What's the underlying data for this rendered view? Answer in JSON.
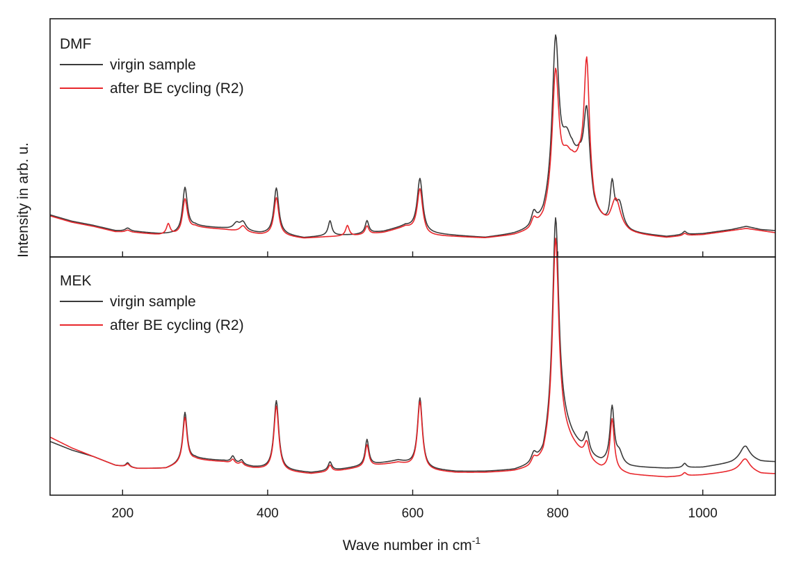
{
  "chart_data": {
    "type": "line",
    "xlabel": "Wave number in cm",
    "xlabel_sup": "-1",
    "ylabel": "Intensity in arb. u.",
    "xlim": [
      100,
      1100
    ],
    "x_ticks": [
      200,
      400,
      600,
      800,
      1000
    ],
    "x_tick_labels": [
      "200",
      "400",
      "600",
      "800",
      "1000"
    ],
    "grid": false,
    "colors": {
      "virgin": "#3a3a3a",
      "cycled": "#e8262b"
    },
    "panels": [
      {
        "name": "DMF",
        "label": "DMF",
        "legend_position": "top-left",
        "ylim": [
          0,
          1
        ],
        "series": [
          {
            "name": "virgin sample",
            "color": "#3a3a3a",
            "baseline": [
              [
                100,
                0.14
              ],
              [
                130,
                0.11
              ],
              [
                160,
                0.09
              ],
              [
                190,
                0.065
              ],
              [
                220,
                0.06
              ],
              [
                250,
                0.05
              ],
              [
                280,
                0.05
              ],
              [
                300,
                0.085
              ],
              [
                340,
                0.075
              ],
              [
                390,
                0.05
              ],
              [
                420,
                0.045
              ],
              [
                450,
                0.03
              ],
              [
                480,
                0.04
              ],
              [
                520,
                0.045
              ],
              [
                560,
                0.06
              ],
              [
                590,
                0.085
              ],
              [
                620,
                0.05
              ],
              [
                660,
                0.04
              ],
              [
                700,
                0.03
              ],
              [
                740,
                0.045
              ],
              [
                760,
                0.06
              ],
              [
                780,
                0.1
              ],
              [
                800,
                0.22
              ],
              [
                820,
                0.36
              ],
              [
                830,
                0.36
              ],
              [
                850,
                0.14
              ],
              [
                870,
                0.07
              ],
              [
                900,
                0.05
              ],
              [
                950,
                0.035
              ],
              [
                975,
                0.045
              ],
              [
                1000,
                0.05
              ],
              [
                1040,
                0.07
              ],
              [
                1060,
                0.085
              ],
              [
                1080,
                0.07
              ],
              [
                1100,
                0.065
              ]
            ],
            "peaks": [
              [
                207,
                0.015,
                4
              ],
              [
                286,
                0.21,
                4
              ],
              [
                357,
                0.03,
                5
              ],
              [
                366,
                0.04,
                5
              ],
              [
                412,
                0.22,
                4
              ],
              [
                486,
                0.07,
                3
              ],
              [
                537,
                0.06,
                3
              ],
              [
                610,
                0.25,
                4.5
              ],
              [
                767,
                0.06,
                4
              ],
              [
                797,
                0.75,
                5.5
              ],
              [
                812,
                0.15,
                8
              ],
              [
                840,
                0.38,
                5
              ],
              [
                875,
                0.2,
                3.5
              ],
              [
                885,
                0.12,
                6
              ],
              [
                975,
                0.015,
                3
              ]
            ]
          },
          {
            "name": "after BE cycling (R2)",
            "color": "#e8262b",
            "baseline": [
              [
                100,
                0.135
              ],
              [
                130,
                0.105
              ],
              [
                160,
                0.085
              ],
              [
                190,
                0.06
              ],
              [
                220,
                0.055
              ],
              [
                250,
                0.045
              ],
              [
                280,
                0.045
              ],
              [
                300,
                0.08
              ],
              [
                340,
                0.07
              ],
              [
                390,
                0.045
              ],
              [
                420,
                0.04
              ],
              [
                450,
                0.028
              ],
              [
                480,
                0.035
              ],
              [
                520,
                0.04
              ],
              [
                560,
                0.055
              ],
              [
                590,
                0.08
              ],
              [
                620,
                0.04
              ],
              [
                660,
                0.035
              ],
              [
                700,
                0.028
              ],
              [
                740,
                0.04
              ],
              [
                760,
                0.055
              ],
              [
                780,
                0.09
              ],
              [
                800,
                0.2
              ],
              [
                820,
                0.33
              ],
              [
                830,
                0.34
              ],
              [
                850,
                0.13
              ],
              [
                870,
                0.065
              ],
              [
                900,
                0.045
              ],
              [
                950,
                0.03
              ],
              [
                975,
                0.04
              ],
              [
                1000,
                0.045
              ],
              [
                1040,
                0.065
              ],
              [
                1060,
                0.075
              ],
              [
                1080,
                0.065
              ],
              [
                1100,
                0.055
              ]
            ],
            "peaks": [
              [
                207,
                0.01,
                4
              ],
              [
                263,
                0.05,
                3
              ],
              [
                286,
                0.16,
                4
              ],
              [
                366,
                0.03,
                5
              ],
              [
                412,
                0.18,
                4
              ],
              [
                510,
                0.05,
                3
              ],
              [
                537,
                0.04,
                3
              ],
              [
                610,
                0.21,
                4.5
              ],
              [
                767,
                0.04,
                4
              ],
              [
                797,
                0.62,
                5.5
              ],
              [
                812,
                0.1,
                8
              ],
              [
                840,
                0.63,
                4.5
              ],
              [
                880,
                0.15,
                8
              ],
              [
                975,
                0.01,
                3
              ]
            ]
          }
        ]
      },
      {
        "name": "MEK",
        "label": "MEK",
        "legend_position": "top-left",
        "ylim": [
          0,
          1
        ],
        "series": [
          {
            "name": "virgin sample",
            "color": "#3a3a3a",
            "baseline": [
              [
                100,
                0.19
              ],
              [
                130,
                0.15
              ],
              [
                160,
                0.12
              ],
              [
                190,
                0.08
              ],
              [
                220,
                0.065
              ],
              [
                260,
                0.065
              ],
              [
                300,
                0.11
              ],
              [
                340,
                0.1
              ],
              [
                380,
                0.07
              ],
              [
                420,
                0.055
              ],
              [
                460,
                0.045
              ],
              [
                500,
                0.06
              ],
              [
                540,
                0.08
              ],
              [
                580,
                0.1
              ],
              [
                620,
                0.06
              ],
              [
                660,
                0.05
              ],
              [
                700,
                0.05
              ],
              [
                740,
                0.055
              ],
              [
                760,
                0.07
              ],
              [
                780,
                0.1
              ],
              [
                800,
                0.3
              ],
              [
                820,
                0.2
              ],
              [
                840,
                0.12
              ],
              [
                860,
                0.09
              ],
              [
                900,
                0.07
              ],
              [
                950,
                0.065
              ],
              [
                1000,
                0.07
              ],
              [
                1040,
                0.09
              ],
              [
                1060,
                0.11
              ],
              [
                1080,
                0.095
              ],
              [
                1100,
                0.095
              ]
            ],
            "peaks": [
              [
                207,
                0.02,
                3
              ],
              [
                286,
                0.23,
                3.5
              ],
              [
                352,
                0.03,
                3
              ],
              [
                364,
                0.02,
                3
              ],
              [
                412,
                0.32,
                4
              ],
              [
                486,
                0.04,
                3
              ],
              [
                537,
                0.12,
                3
              ],
              [
                610,
                0.32,
                4
              ],
              [
                767,
                0.04,
                4
              ],
              [
                797,
                0.95,
                5
              ],
              [
                840,
                0.1,
                4
              ],
              [
                875,
                0.26,
                3.5
              ],
              [
                885,
                0.05,
                5
              ],
              [
                975,
                0.02,
                3
              ],
              [
                1058,
                0.06,
                8
              ]
            ]
          },
          {
            "name": "after BE cycling (R2)",
            "color": "#e8262b",
            "baseline": [
              [
                100,
                0.21
              ],
              [
                130,
                0.16
              ],
              [
                160,
                0.12
              ],
              [
                190,
                0.08
              ],
              [
                220,
                0.065
              ],
              [
                260,
                0.065
              ],
              [
                300,
                0.105
              ],
              [
                340,
                0.095
              ],
              [
                380,
                0.065
              ],
              [
                420,
                0.05
              ],
              [
                460,
                0.04
              ],
              [
                500,
                0.055
              ],
              [
                540,
                0.075
              ],
              [
                580,
                0.09
              ],
              [
                620,
                0.055
              ],
              [
                660,
                0.045
              ],
              [
                700,
                0.045
              ],
              [
                740,
                0.05
              ],
              [
                760,
                0.06
              ],
              [
                780,
                0.09
              ],
              [
                800,
                0.25
              ],
              [
                820,
                0.17
              ],
              [
                840,
                0.1
              ],
              [
                860,
                0.06
              ],
              [
                900,
                0.035
              ],
              [
                950,
                0.025
              ],
              [
                1000,
                0.035
              ],
              [
                1040,
                0.05
              ],
              [
                1060,
                0.06
              ],
              [
                1080,
                0.04
              ],
              [
                1100,
                0.04
              ]
            ],
            "peaks": [
              [
                207,
                0.015,
                3
              ],
              [
                286,
                0.21,
                3.5
              ],
              [
                352,
                0.02,
                3
              ],
              [
                364,
                0.015,
                3
              ],
              [
                412,
                0.3,
                4
              ],
              [
                486,
                0.03,
                3
              ],
              [
                537,
                0.1,
                3
              ],
              [
                610,
                0.31,
                4
              ],
              [
                767,
                0.03,
                4
              ],
              [
                797,
                0.9,
                5
              ],
              [
                840,
                0.08,
                4
              ],
              [
                875,
                0.24,
                3.5
              ],
              [
                975,
                0.015,
                3
              ],
              [
                1058,
                0.05,
                8
              ]
            ]
          }
        ]
      }
    ]
  }
}
